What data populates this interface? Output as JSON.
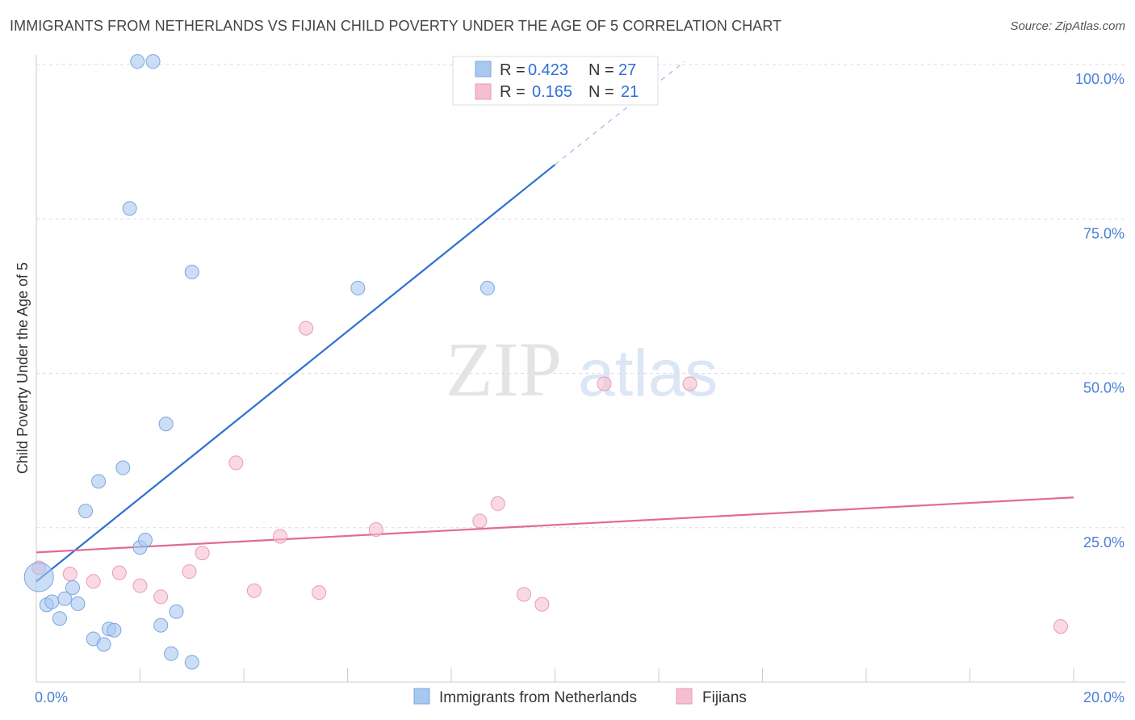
{
  "header": {
    "title": "IMMIGRANTS FROM NETHERLANDS VS FIJIAN CHILD POVERTY UNDER THE AGE OF 5 CORRELATION CHART",
    "source": "Source: ZipAtlas.com"
  },
  "watermark": {
    "zip": "ZIP",
    "atlas": "atlas"
  },
  "colors": {
    "blue_fill": "#a9c8f0",
    "blue_stroke": "#7aa7e0",
    "blue_line": "#2e6fd3",
    "pink_fill": "#f6bfd0",
    "pink_stroke": "#ea9ab4",
    "pink_line": "#e06b93",
    "grid": "#dddddd",
    "tick_text": "#4a7fd4"
  },
  "legend_top": {
    "rows": [
      {
        "r_label": "R =",
        "r_value": "0.423",
        "n_label": "N =",
        "n_value": "27"
      },
      {
        "r_label": "R =",
        "r_value": "0.165",
        "n_label": "N =",
        "n_value": "21"
      }
    ]
  },
  "chart_data": {
    "type": "scatter",
    "title": "IMMIGRANTS FROM NETHERLANDS VS FIJIAN CHILD POVERTY UNDER THE AGE OF 5 CORRELATION CHART",
    "xlabel": "",
    "ylabel": "Child Poverty Under the Age of 5",
    "xlim": [
      0,
      20
    ],
    "ylim": [
      0,
      103
    ],
    "x_tick_labels": {
      "min": "0.0%",
      "max": "20.0%"
    },
    "y_ticks": [
      {
        "value": 25,
        "label": "25.0%"
      },
      {
        "value": 50,
        "label": "50.0%"
      },
      {
        "value": 75,
        "label": "75.0%"
      },
      {
        "value": 100,
        "label": "100.0%"
      }
    ],
    "x_minor_ticks": [
      2,
      4,
      6,
      8,
      10,
      12,
      14,
      16,
      18,
      20
    ],
    "grid": true,
    "series": [
      {
        "name": "Immigrants from Netherlands",
        "color": "#a9c8f0",
        "points": [
          {
            "x": 0.05,
            "y": 17.0,
            "big": true
          },
          {
            "x": 0.2,
            "y": 12.5
          },
          {
            "x": 0.3,
            "y": 13.0
          },
          {
            "x": 0.45,
            "y": 10.3
          },
          {
            "x": 0.55,
            "y": 13.5
          },
          {
            "x": 0.7,
            "y": 15.3
          },
          {
            "x": 0.8,
            "y": 12.7
          },
          {
            "x": 0.95,
            "y": 27.7
          },
          {
            "x": 1.1,
            "y": 7.0
          },
          {
            "x": 1.2,
            "y": 32.5
          },
          {
            "x": 1.3,
            "y": 6.1
          },
          {
            "x": 1.4,
            "y": 8.6
          },
          {
            "x": 1.5,
            "y": 8.4
          },
          {
            "x": 1.67,
            "y": 34.7
          },
          {
            "x": 1.8,
            "y": 76.7
          },
          {
            "x": 1.95,
            "y": 100.5
          },
          {
            "x": 2.0,
            "y": 21.8
          },
          {
            "x": 2.1,
            "y": 23.0
          },
          {
            "x": 2.25,
            "y": 100.5
          },
          {
            "x": 2.4,
            "y": 9.2
          },
          {
            "x": 2.5,
            "y": 41.8
          },
          {
            "x": 2.6,
            "y": 4.6
          },
          {
            "x": 2.7,
            "y": 11.4
          },
          {
            "x": 3.0,
            "y": 3.2
          },
          {
            "x": 3.0,
            "y": 66.4
          },
          {
            "x": 6.2,
            "y": 63.8
          },
          {
            "x": 8.7,
            "y": 63.8
          }
        ],
        "trend": {
          "x1": 0.0,
          "y1": 16.3,
          "x2": 10.0,
          "y2": 83.8,
          "dash_x2": 12.5,
          "dash_y2": 100.5
        }
      },
      {
        "name": "Fijians",
        "color": "#f6bfd0",
        "points": [
          {
            "x": 0.05,
            "y": 18.5
          },
          {
            "x": 0.65,
            "y": 17.5
          },
          {
            "x": 1.1,
            "y": 16.3
          },
          {
            "x": 1.6,
            "y": 17.7
          },
          {
            "x": 2.0,
            "y": 15.6
          },
          {
            "x": 2.4,
            "y": 13.8
          },
          {
            "x": 2.95,
            "y": 17.9
          },
          {
            "x": 3.2,
            "y": 20.9
          },
          {
            "x": 3.85,
            "y": 35.5
          },
          {
            "x": 4.2,
            "y": 14.8
          },
          {
            "x": 4.7,
            "y": 23.6
          },
          {
            "x": 5.2,
            "y": 57.3
          },
          {
            "x": 5.45,
            "y": 14.5
          },
          {
            "x": 6.55,
            "y": 24.7
          },
          {
            "x": 8.55,
            "y": 26.1
          },
          {
            "x": 8.9,
            "y": 28.9
          },
          {
            "x": 9.4,
            "y": 14.2
          },
          {
            "x": 9.75,
            "y": 12.6
          },
          {
            "x": 10.95,
            "y": 48.3
          },
          {
            "x": 12.6,
            "y": 48.3
          },
          {
            "x": 19.75,
            "y": 9.0
          }
        ],
        "trend": {
          "x1": 0.0,
          "y1": 21.0,
          "x2": 20.0,
          "y2": 29.9
        }
      }
    ]
  }
}
